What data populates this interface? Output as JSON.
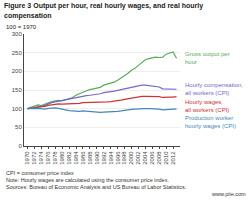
{
  "chart_data": {
    "type": "line",
    "title": "Figure 3 Output per hour, real hourly wages, and real hourly compensation",
    "subtitle": "100 = 1970",
    "x": [
      1970,
      1971,
      1972,
      1973,
      1974,
      1975,
      1976,
      1977,
      1978,
      1979,
      1980,
      1981,
      1982,
      1983,
      1984,
      1985,
      1986,
      1987,
      1988,
      1989,
      1990,
      1991,
      1992,
      1993,
      1994,
      1995,
      1996,
      1997,
      1998,
      1999,
      2000,
      2001,
      2002,
      2003,
      2004,
      2005,
      2006,
      2007,
      2008,
      2009,
      2010,
      2011,
      2012,
      2013
    ],
    "series": [
      {
        "name": "Gross output per hour",
        "color": "#5aaa5a",
        "values": [
          100,
          103,
          107,
          110,
          108,
          112,
          116,
          119,
          121,
          122,
          121,
          124,
          125,
          130,
          136,
          140,
          146,
          148,
          151,
          153,
          156,
          157,
          163,
          165,
          169,
          171,
          176,
          182,
          189,
          195,
          203,
          208,
          216,
          223,
          231,
          234,
          237,
          238,
          237,
          238,
          246,
          249,
          252,
          235
        ]
      },
      {
        "name": "Hourly compensation,\nall workers (CPI)",
        "color": "#7766cc",
        "values": [
          100,
          101,
          103,
          105,
          106,
          109,
          113,
          116,
          118,
          120,
          121,
          124,
          126,
          127,
          129,
          131,
          134,
          135,
          136,
          137,
          139,
          140,
          143,
          144,
          146,
          147,
          149,
          151,
          153,
          155,
          158,
          160,
          162,
          163,
          163,
          162,
          161,
          160,
          158,
          153,
          153,
          151,
          151,
          152
        ]
      },
      {
        "name": "Hourly wages,\nall workers (CPI)",
        "color": "#cc3333",
        "values": [
          100,
          100,
          102,
          104,
          104,
          106,
          109,
          111,
          112,
          113,
          112,
          112,
          112,
          112,
          113,
          114,
          116,
          116,
          117,
          116,
          116,
          116,
          118,
          118,
          119,
          120,
          121,
          123,
          125,
          127,
          129,
          131,
          133,
          133,
          133,
          133,
          133,
          133,
          132,
          130,
          131,
          131,
          131,
          132
        ]
      },
      {
        "name": "Production worker hourly wages (CPI)",
        "color": "#4488bb",
        "values": [
          100,
          99,
          100,
          101,
          99,
          99,
          101,
          102,
          102,
          101,
          98,
          97,
          95,
          94,
          94,
          93,
          94,
          93,
          93,
          92,
          91,
          90,
          91,
          91,
          92,
          92,
          93,
          94,
          96,
          97,
          98,
          99,
          100,
          100,
          100,
          100,
          100,
          100,
          99,
          97,
          98,
          98,
          99,
          99
        ]
      }
    ],
    "xlim": [
      1969,
      2014
    ],
    "xticks": [
      1970,
      1972,
      1974,
      1976,
      1978,
      1980,
      1982,
      1984,
      1986,
      1988,
      1990,
      1992,
      1994,
      1996,
      1998,
      2000,
      2002,
      2004,
      2006,
      2008,
      2010,
      2012
    ],
    "ylim": [
      0,
      300
    ],
    "yticks": [
      0,
      50,
      100,
      150,
      200,
      250,
      300
    ],
    "grid": true,
    "footnotes": [
      "CPI = consumer price index",
      "Note: Hourly wages are calculated using the consumer price index.",
      "Sources: Bureau of Economic Analysis and US Bureau of Labor Statistics."
    ],
    "url": "www.piie.com"
  }
}
